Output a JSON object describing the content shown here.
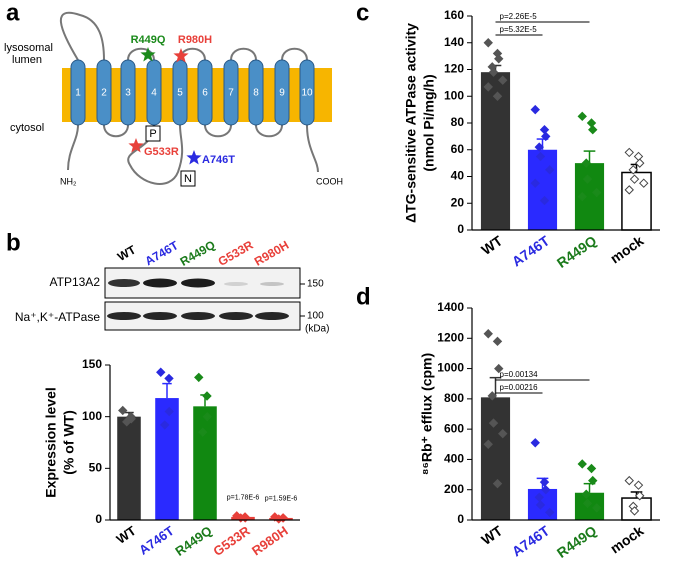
{
  "panels": [
    "a",
    "b",
    "c",
    "d"
  ],
  "diagram": {
    "lumen_label": [
      "lysosomal",
      "lumen"
    ],
    "cytosol_label": "cytosol",
    "helices": [
      "1",
      "2",
      "3",
      "4",
      "5",
      "6",
      "7",
      "8",
      "9",
      "10"
    ],
    "mutations": [
      {
        "label": "R449Q",
        "color": "#1a8a1a"
      },
      {
        "label": "R980H",
        "color": "#e8403a"
      },
      {
        "label": "G533R",
        "color": "#e8403a"
      },
      {
        "label": "A746T",
        "color": "#2a2ae0"
      }
    ],
    "domains": [
      "P",
      "N"
    ],
    "termini": [
      "NH₂",
      "COOH"
    ]
  },
  "blot": {
    "lanes": [
      "WT",
      "A746T",
      "R449Q",
      "G533R",
      "R980H"
    ],
    "lane_colors": [
      "#000000",
      "#2a2ae0",
      "#1a7a1a",
      "#e8403a",
      "#e8403a"
    ],
    "rows": [
      "ATP13A2",
      "Na⁺,K⁺-ATPase"
    ],
    "markers": [
      "150",
      "100"
    ],
    "unit": "(kDa)"
  },
  "chart_data": [
    {
      "type": "bar",
      "ylabel": [
        "Expression level",
        "(% of WT)"
      ],
      "categories": [
        "WT",
        "A746T",
        "R449Q",
        "G533R",
        "R980H"
      ],
      "values": [
        100,
        118,
        110,
        3,
        2
      ],
      "errors": [
        4,
        14,
        11,
        1,
        1
      ],
      "colors": [
        "#333333",
        "#2a2aff",
        "#118811",
        "#e8403a",
        "#e8403a"
      ],
      "label_colors": [
        "#000000",
        "#2a2ae0",
        "#1a7a1a",
        "#e8403a",
        "#e8403a"
      ],
      "point_colors": [
        "#555555",
        "#2a2ae0",
        "#1a8a1a",
        "#e8403a",
        "#e8403a"
      ],
      "points": [
        [
          106,
          100,
          98,
          95
        ],
        [
          143,
          137,
          105,
          92
        ],
        [
          138,
          120,
          100,
          85
        ],
        [
          4,
          3,
          2,
          2
        ],
        [
          3,
          2,
          2,
          1
        ]
      ],
      "ylim": [
        0,
        150
      ],
      "yticks": [
        0,
        50,
        100,
        150
      ],
      "annotations": [
        {
          "text": "p=1.78E-6",
          "above": "G533R"
        },
        {
          "text": "p=1.59E-6",
          "above": "R980H"
        }
      ]
    },
    {
      "type": "bar",
      "ylabel": [
        "ΔTG-sensitive ATPase activity",
        "(nmol Pi/mg/h)"
      ],
      "categories": [
        "WT",
        "A746T",
        "R449Q",
        "mock"
      ],
      "values": [
        118,
        60,
        50,
        43
      ],
      "errors": [
        5,
        8,
        9,
        6
      ],
      "colors": [
        "#333333",
        "#2a2aff",
        "#118811",
        "#ffffff"
      ],
      "label_colors": [
        "#000000",
        "#2a2ae0",
        "#1a7a1a",
        "#000000"
      ],
      "point_colors": [
        "#555555",
        "#2a2ae0",
        "#1a8a1a",
        "#444444"
      ],
      "points": [
        [
          140,
          132,
          128,
          122,
          118,
          112,
          107,
          100
        ],
        [
          90,
          75,
          70,
          62,
          55,
          45,
          35,
          22
        ],
        [
          85,
          80,
          75,
          50,
          38,
          28,
          25
        ],
        [
          58,
          55,
          50,
          45,
          38,
          35,
          30
        ]
      ],
      "ylim": [
        0,
        160
      ],
      "yticks": [
        0,
        20,
        40,
        60,
        80,
        100,
        120,
        140,
        160
      ],
      "annotations": [
        {
          "text": "p=2.26E-5",
          "between": [
            "WT",
            "R449Q"
          ]
        },
        {
          "text": "p=5.32E-5",
          "between": [
            "WT",
            "A746T"
          ]
        }
      ]
    },
    {
      "type": "bar",
      "ylabel": [
        "⁸⁶Rb⁺ efflux (cpm)"
      ],
      "categories": [
        "WT",
        "A746T",
        "R449Q",
        "mock"
      ],
      "values": [
        810,
        205,
        180,
        145
      ],
      "errors": [
        130,
        70,
        60,
        40
      ],
      "colors": [
        "#333333",
        "#2a2aff",
        "#118811",
        "#ffffff"
      ],
      "label_colors": [
        "#000000",
        "#2a2ae0",
        "#1a7a1a",
        "#000000"
      ],
      "point_colors": [
        "#555555",
        "#2a2ae0",
        "#1a8a1a",
        "#444444"
      ],
      "points": [
        [
          1230,
          1180,
          1000,
          820,
          640,
          570,
          500,
          240
        ],
        [
          510,
          250,
          200,
          150,
          100,
          50
        ],
        [
          370,
          340,
          260,
          170,
          110,
          80
        ],
        [
          260,
          230,
          160,
          90,
          60
        ]
      ],
      "ylim": [
        0,
        1400
      ],
      "yticks": [
        0,
        200,
        400,
        600,
        800,
        1000,
        1200,
        1400
      ],
      "annotations": [
        {
          "text": "p=0.00134",
          "between": [
            "WT",
            "R449Q"
          ]
        },
        {
          "text": "p=0.00216",
          "between": [
            "WT",
            "A746T"
          ]
        }
      ]
    }
  ]
}
